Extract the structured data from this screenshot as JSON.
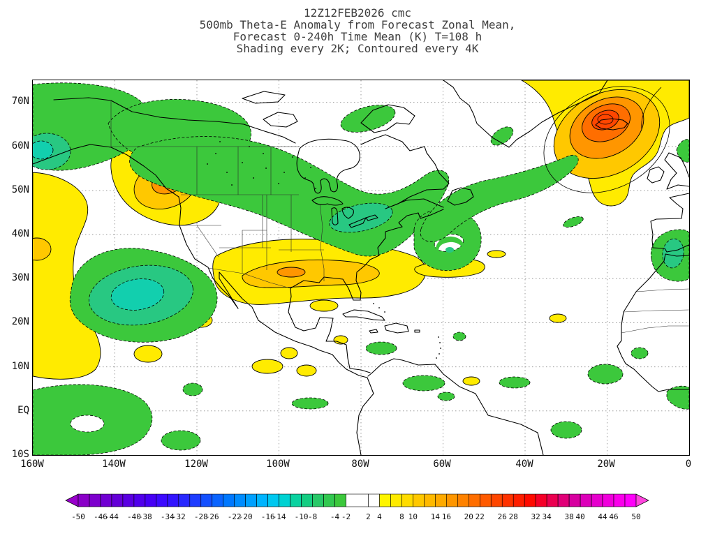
{
  "title": {
    "line1": "12Z12FEB2026  cmc",
    "line2": "500mb Theta-E Anomaly from Forecast Zonal Mean,",
    "line3": "Forecast 0-240h Time Mean (K) T=108 h",
    "line4": "Shading every 2K; Contoured every 4K"
  },
  "axes": {
    "lat": [
      "70N",
      "60N",
      "50N",
      "40N",
      "30N",
      "20N",
      "10N",
      "EQ",
      "10S"
    ],
    "lon": [
      "160W",
      "140W",
      "120W",
      "100W",
      "80W",
      "60W",
      "40W",
      "20W",
      "0"
    ]
  },
  "map_colors": {
    "negative_1": "#3cc83c",
    "negative_2": "#28c882",
    "negative_3": "#12cfae",
    "positive_1": "#ffeb00",
    "positive_2": "#ffc800",
    "positive_3": "#ff9600",
    "positive_4": "#ff6e00",
    "positive_5": "#ff4600",
    "background": "#ffffff",
    "grid": "#999999",
    "coastline": "#000000"
  },
  "colorbar": {
    "min": -50,
    "max": 50,
    "step": 2,
    "white_gap": [
      -2,
      2
    ],
    "labels": [
      -50,
      -46,
      -44,
      -40,
      -38,
      -34,
      -32,
      -28,
      -26,
      -22,
      -20,
      -16,
      -14,
      -10,
      -8,
      -4,
      -2,
      2,
      4,
      8,
      10,
      14,
      16,
      20,
      22,
      26,
      28,
      32,
      34,
      38,
      40,
      44,
      46,
      50
    ],
    "left_arrow_color": "#9900cc",
    "right_arrow_color": "#ff44dd",
    "colors": [
      "#8a00c8",
      "#7d00cd",
      "#7000d2",
      "#6400d7",
      "#5a00e1",
      "#5000eb",
      "#4600f5",
      "#3c0aff",
      "#3214ff",
      "#2828ff",
      "#1e3cff",
      "#1450ff",
      "#0a64ff",
      "#0078ff",
      "#008cff",
      "#00a0ff",
      "#00b4ff",
      "#00c8f0",
      "#00d2d2",
      "#0ad2a0",
      "#14cd82",
      "#28c868",
      "#32c850",
      "#3cc83c",
      "#ffffff",
      "#ffffff",
      "#fff500",
      "#ffeb00",
      "#ffdc00",
      "#ffc800",
      "#ffb900",
      "#ffaa00",
      "#ff9600",
      "#ff8200",
      "#ff6e00",
      "#ff5a00",
      "#ff4600",
      "#ff3200",
      "#ff1e00",
      "#ff0a00",
      "#f50028",
      "#eb0050",
      "#e10078",
      "#d700a0",
      "#dc00b9",
      "#e600cd",
      "#f000dc",
      "#fa00eb",
      "#ff00fa"
    ]
  },
  "chart_data": {
    "type": "heatmap",
    "subtype": "filled-contour-anomaly-map",
    "title": "500mb Theta-E Anomaly from Forecast Zonal Mean (K)",
    "model": "cmc",
    "initialization": "12Z12FEB2026",
    "forecast": "Forecast 0-240h Time Mean (K) T=108 h",
    "shading_interval_K": 2,
    "contour_interval_K": 4,
    "units": "K",
    "lon_range_deg": [
      -160,
      0
    ],
    "lat_range_deg": [
      -10,
      75
    ],
    "grid": "dotted graticule, 10 deg latitude x 20 deg longitude",
    "legend_position": "bottom colorbar with out-of-range arrows",
    "colorbar_levels": [
      -50,
      -46,
      -44,
      -40,
      -38,
      -34,
      -32,
      -28,
      -26,
      -22,
      -20,
      -16,
      -14,
      -10,
      -8,
      -4,
      -2,
      2,
      4,
      8,
      10,
      14,
      16,
      20,
      22,
      26,
      28,
      32,
      34,
      38,
      40,
      44,
      46,
      50
    ],
    "values_estimated": true,
    "features": [
      {
        "region": "NW Canada / Gulf of Alaska negative anomaly",
        "lon": -150,
        "lat": 62,
        "anomaly_K": -8
      },
      {
        "region": "NE Pacific subtropical negative center",
        "lon": -133,
        "lat": 27,
        "anomaly_K": -10
      },
      {
        "region": "British Columbia coast positive center",
        "lon": -128,
        "lat": 50,
        "anomaly_K": 12
      },
      {
        "region": "Far NE Pacific band along 160W",
        "lon": -158,
        "lat": 35,
        "anomaly_K": 8
      },
      {
        "region": "Central Canada / Great Lakes negative band",
        "lon": -82,
        "lat": 45,
        "anomaly_K": -8
      },
      {
        "region": "Southern United States positive band",
        "lon": -95,
        "lat": 31,
        "anomaly_K": 10
      },
      {
        "region": "Western Atlantic cutoff swirl",
        "lon": -62,
        "lat": 39,
        "anomaly_K": -6
      },
      {
        "region": "Atlantic band south of Greenland",
        "lon": -35,
        "lat": 52,
        "anomaly_K": -6
      },
      {
        "region": "Iceland / North Atlantic positive maximum",
        "lon": -20,
        "lat": 65,
        "anomaly_K": 28
      },
      {
        "region": "Iberia / Morocco coast negative center",
        "lon": -8,
        "lat": 36,
        "anomaly_K": -8
      },
      {
        "region": "Scattered tropical positive patches",
        "lon": -100,
        "lat": 10,
        "anomaly_K": 4
      },
      {
        "region": "Equatorial east Pacific negative area",
        "lon": -140,
        "lat": -3,
        "anomaly_K": -4
      }
    ]
  }
}
